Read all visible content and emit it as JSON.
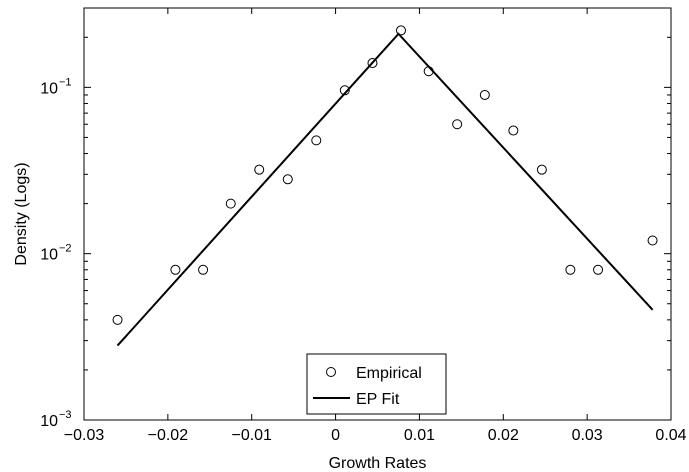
{
  "chart_data": {
    "type": "scatter",
    "xlabel": "Growth Rates",
    "ylabel": "Density (Logs)",
    "yscale": "log",
    "xlim": [
      -0.03,
      0.04
    ],
    "ylim": [
      0.001,
      0.3
    ],
    "grid": false,
    "legend_position": "bottom-center",
    "x_ticks": [
      -0.03,
      -0.02,
      -0.01,
      0,
      0.01,
      0.02,
      0.03,
      0.04
    ],
    "x_tick_labels": [
      "−0.03",
      "−0.02",
      "−0.01",
      "0",
      "0.01",
      "0.02",
      "0.03",
      "0.04"
    ],
    "y_ticks": [
      {
        "value": 0.001,
        "base": "10",
        "exp": "−3"
      },
      {
        "value": 0.01,
        "base": "10",
        "exp": "−2"
      },
      {
        "value": 0.1,
        "base": "10",
        "exp": "−1"
      }
    ],
    "series": [
      {
        "name": "Empirical",
        "kind": "markers",
        "marker": "circle-open",
        "color": "#000000",
        "x": [
          -0.026,
          -0.0191,
          -0.0158,
          -0.0125,
          -0.0091,
          -0.0057,
          -0.0023,
          0.0011,
          0.0044,
          0.0078,
          0.0111,
          0.0145,
          0.0178,
          0.0212,
          0.0246,
          0.028,
          0.0313,
          0.0378
        ],
        "y": [
          0.004,
          0.008,
          0.008,
          0.02,
          0.032,
          0.028,
          0.048,
          0.096,
          0.14,
          0.22,
          0.125,
          0.06,
          0.09,
          0.055,
          0.032,
          0.008,
          0.008,
          0.012
        ]
      },
      {
        "name": "EP Fit",
        "kind": "line",
        "color": "#000000",
        "x": [
          -0.026,
          0.0075,
          0.0378
        ],
        "y": [
          0.0028,
          0.21,
          0.0046
        ]
      }
    ]
  }
}
